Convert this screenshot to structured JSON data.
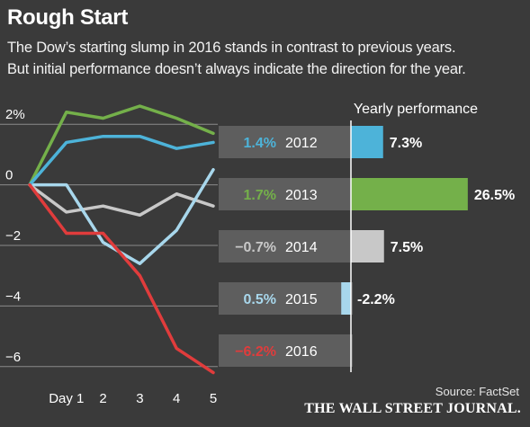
{
  "header": {
    "title": "Rough Start",
    "subtitle_line1": "The Dow’s starting slump in 2016 stands in contrast to previous years.",
    "subtitle_line2": "But initial performance doesn’t always indicate the direction for the year."
  },
  "footer": {
    "source": "Source: FactSet",
    "publisher": "THE WALL STREET JOURNAL."
  },
  "chart_data": [
    {
      "type": "line",
      "x": [
        0,
        1,
        2,
        3,
        4,
        5
      ],
      "x_tick_values": [
        1,
        2,
        3,
        4,
        5
      ],
      "x_tick_labels": [
        "Day 1",
        "2",
        "3",
        "4",
        "5"
      ],
      "y_tick_values": [
        2,
        0,
        -2,
        -4,
        -6
      ],
      "y_tick_labels": [
        "2%",
        "0",
        "−2",
        "−4",
        "−6"
      ],
      "ylim": [
        -6.6,
        2.6
      ],
      "xlim": [
        0,
        5
      ],
      "grid": "horizontal",
      "series": [
        {
          "name": "2012",
          "color": "#4db3d9",
          "values": [
            0,
            1.4,
            1.6,
            1.6,
            1.2,
            1.4
          ]
        },
        {
          "name": "2013",
          "color": "#74b04a",
          "values": [
            0,
            2.4,
            2.2,
            2.6,
            2.2,
            1.7
          ]
        },
        {
          "name": "2014",
          "color": "#c8c8c8",
          "values": [
            0,
            -0.9,
            -0.7,
            -1.0,
            -0.3,
            -0.7
          ]
        },
        {
          "name": "2015",
          "color": "#a8d7ec",
          "values": [
            0,
            0.0,
            -1.9,
            -2.6,
            -1.5,
            0.5
          ]
        },
        {
          "name": "2016",
          "color": "#e03c3c",
          "values": [
            0,
            -1.6,
            -1.6,
            -3.0,
            -5.4,
            -6.2
          ]
        }
      ]
    },
    {
      "type": "bar",
      "title": "Yearly performance",
      "categories": [
        "2012",
        "2013",
        "2014",
        "2015",
        "2016"
      ],
      "start_values": [
        1.4,
        1.7,
        -0.7,
        0.5,
        -6.2
      ],
      "start_labels": [
        "1.4%",
        "1.7%",
        "−0.7%",
        "0.5%",
        "−6.2%"
      ],
      "values": [
        7.3,
        26.5,
        7.5,
        -2.2,
        null
      ],
      "value_labels": [
        "7.3%",
        "26.5%",
        "7.5%",
        "-2.2%",
        ""
      ],
      "colors": [
        "#4db3d9",
        "#74b04a",
        "#c8c8c8",
        "#a8d7ec",
        "#e03c3c"
      ]
    }
  ]
}
